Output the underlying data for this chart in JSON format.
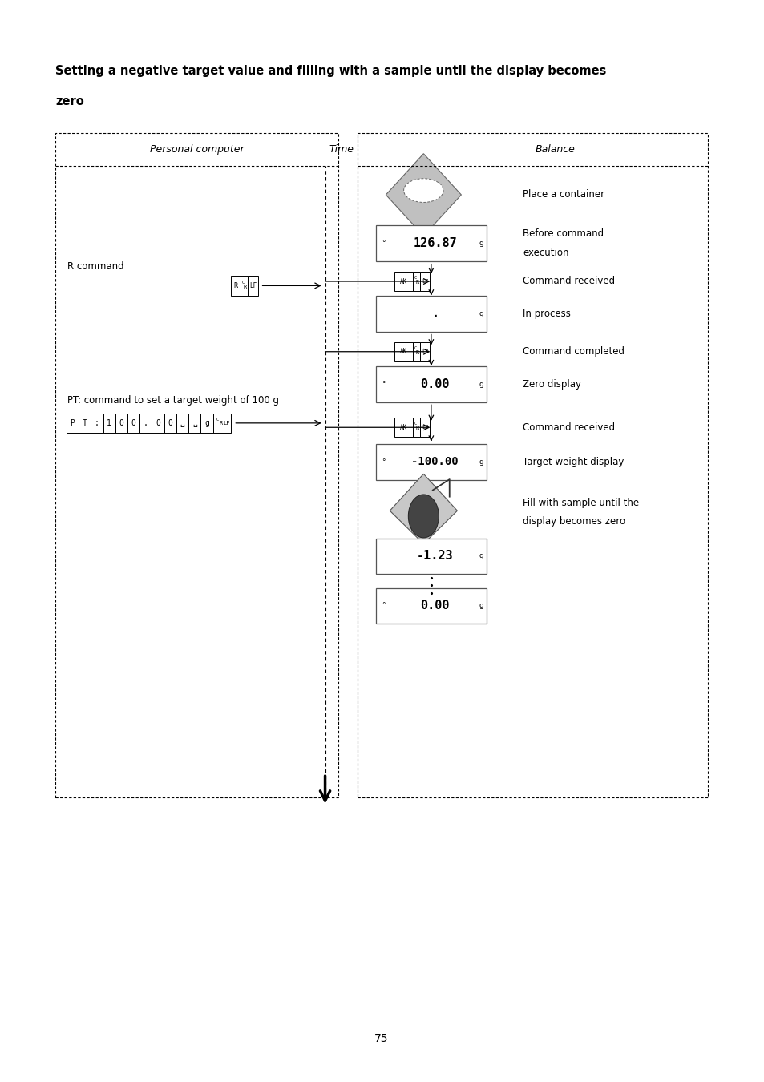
{
  "title_line1": "Setting a negative target value and filling with a sample until the display becomes",
  "title_line2": "zero",
  "page_number": "75",
  "bg_color": "#ffffff",
  "col_pc": "Personal computer",
  "col_time": "Time",
  "col_balance": "Balance",
  "r_command_label": "R command",
  "pt_command_label": "PT: command to set a target weight of 100 g",
  "place_container": "Place a container",
  "before_command_1": "Before command",
  "before_command_2": "execution",
  "command_received": "Command received",
  "in_process": "In process",
  "command_completed": "Command completed",
  "zero_display_label": "Zero display",
  "target_weight_label": "Target weight display",
  "fill_label_1": "Fill with sample until the",
  "fill_label_2": "display becomes zero",
  "display_126": "126.87",
  "display_000": "0.00",
  "display_neg100": "-100.00",
  "display_neg123": "-1.23",
  "pt_chars": [
    "P",
    "T",
    ":",
    "1",
    "0",
    "0",
    ".",
    "0",
    "0",
    "␣",
    "␣",
    "g"
  ]
}
